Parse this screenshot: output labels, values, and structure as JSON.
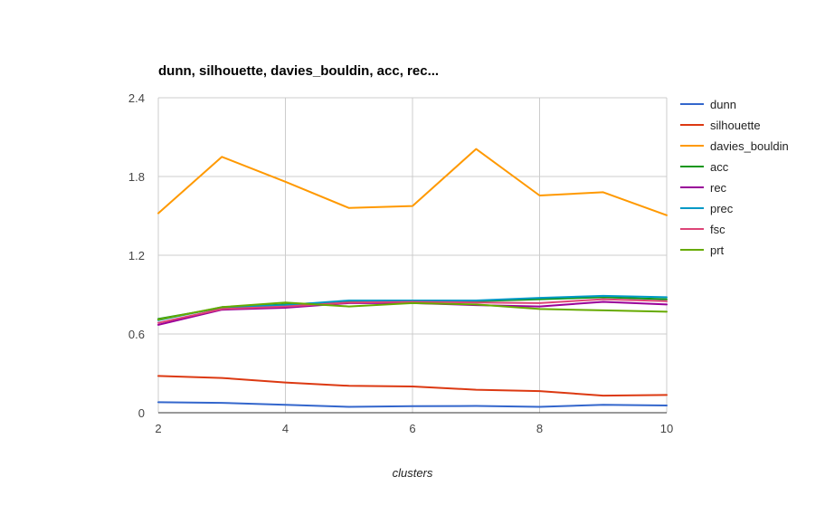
{
  "chart_data": {
    "type": "line",
    "title": "dunn, silhouette, davies_bouldin, acc, rec...",
    "xlabel": "clusters",
    "ylabel": "",
    "x": [
      2,
      3,
      4,
      5,
      6,
      7,
      8,
      9,
      10
    ],
    "xlim": [
      2,
      10
    ],
    "ylim": [
      0,
      2.4
    ],
    "x_ticks": [
      "2",
      "4",
      "6",
      "8",
      "10"
    ],
    "y_ticks": [
      "0",
      "0.6",
      "1.2",
      "1.8",
      "2.4"
    ],
    "grid": true,
    "legend_position": "right",
    "series": [
      {
        "name": "dunn",
        "color": "#3366cc",
        "values": [
          0.08,
          0.075,
          0.06,
          0.045,
          0.05,
          0.052,
          0.045,
          0.06,
          0.055
        ]
      },
      {
        "name": "silhouette",
        "color": "#dc3912",
        "values": [
          0.28,
          0.265,
          0.23,
          0.205,
          0.2,
          0.175,
          0.165,
          0.13,
          0.135
        ]
      },
      {
        "name": "davies_bouldin",
        "color": "#ff9900",
        "values": [
          1.52,
          1.95,
          1.76,
          1.56,
          1.575,
          2.01,
          1.655,
          1.68,
          1.505
        ]
      },
      {
        "name": "acc",
        "color": "#109618",
        "values": [
          0.715,
          0.8,
          0.825,
          0.845,
          0.85,
          0.85,
          0.865,
          0.88,
          0.865
        ]
      },
      {
        "name": "rec",
        "color": "#990099",
        "values": [
          0.67,
          0.785,
          0.8,
          0.835,
          0.835,
          0.82,
          0.81,
          0.845,
          0.825
        ]
      },
      {
        "name": "prec",
        "color": "#0099c6",
        "values": [
          0.705,
          0.805,
          0.82,
          0.855,
          0.855,
          0.855,
          0.875,
          0.89,
          0.88
        ]
      },
      {
        "name": "fsc",
        "color": "#dd4477",
        "values": [
          0.685,
          0.79,
          0.81,
          0.84,
          0.845,
          0.84,
          0.835,
          0.865,
          0.85
        ]
      },
      {
        "name": "prt",
        "color": "#66aa00",
        "values": [
          0.71,
          0.805,
          0.84,
          0.81,
          0.835,
          0.825,
          0.79,
          0.78,
          0.77
        ]
      }
    ]
  }
}
